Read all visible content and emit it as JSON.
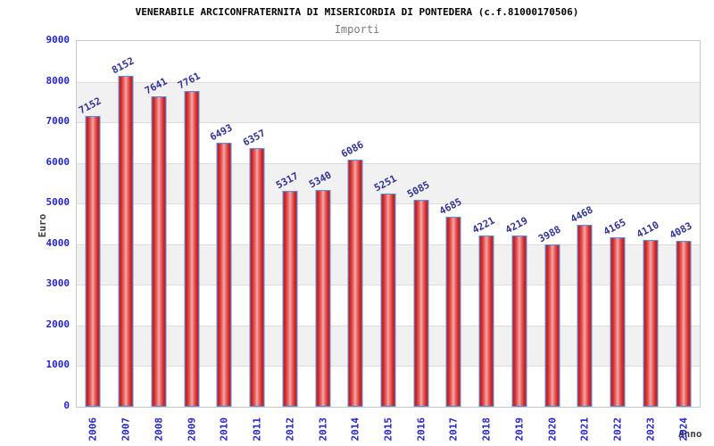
{
  "chart_data": {
    "type": "bar",
    "title": "VENERABILE ARCICONFRATERNITA DI MISERICORDIA DI PONTEDERA (c.f.81000170506)",
    "subtitle": "Importi",
    "xlabel": "Anno",
    "ylabel": "Euro",
    "categories": [
      "2006",
      "2007",
      "2008",
      "2009",
      "2010",
      "2011",
      "2012",
      "2013",
      "2014",
      "2015",
      "2016",
      "2017",
      "2018",
      "2019",
      "2020",
      "2021",
      "2022",
      "2023",
      "2024"
    ],
    "values": [
      7152,
      8152,
      7641,
      7761,
      6493,
      6357,
      5317,
      5340,
      6086,
      5251,
      5085,
      4685,
      4221,
      4219,
      3988,
      4468,
      4165,
      4110,
      4083
    ],
    "ylim": [
      0,
      9000
    ],
    "y_ticks": [
      0,
      1000,
      2000,
      3000,
      4000,
      5000,
      6000,
      7000,
      8000,
      9000
    ],
    "grid": true,
    "legend_position": "none"
  },
  "colors": {
    "title": "#000000",
    "subtitle": "#7a7a7a",
    "axis_title": "#3d3d3d",
    "tick_label": "#2424cc",
    "value_label": "#32329b",
    "plot_border": "#c9c9c9",
    "grid_line": "#dcdcdc",
    "band_gray": "#f1f1f1",
    "band_white": "#ffffff",
    "bar_border": "#4d94eb",
    "bar_edge": "#d32a2a",
    "bar_dark": "#c11f1f",
    "bar_mid": "#e85a5a",
    "bar_light": "#f3a8a8"
  }
}
